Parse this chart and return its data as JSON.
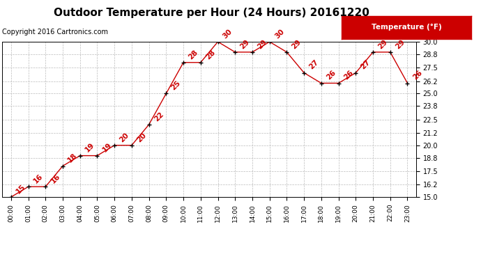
{
  "title": "Outdoor Temperature per Hour (24 Hours) 20161220",
  "copyright": "Copyright 2016 Cartronics.com",
  "legend_label": "Temperature (°F)",
  "hours": [
    "00:00",
    "01:00",
    "02:00",
    "03:00",
    "04:00",
    "05:00",
    "06:00",
    "07:00",
    "08:00",
    "09:00",
    "10:00",
    "11:00",
    "12:00",
    "13:00",
    "14:00",
    "15:00",
    "16:00",
    "17:00",
    "18:00",
    "19:00",
    "20:00",
    "21:00",
    "22:00",
    "23:00"
  ],
  "temps": [
    15,
    16,
    16,
    18,
    19,
    19,
    20,
    20,
    22,
    25,
    28,
    28,
    30,
    29,
    29,
    30,
    29,
    27,
    26,
    26,
    27,
    29,
    29,
    26
  ],
  "line_color": "#cc0000",
  "marker_color": "#000000",
  "label_color": "#cc0000",
  "background_color": "#ffffff",
  "grid_color": "#bbbbbb",
  "ylim": [
    15.0,
    30.0
  ],
  "yticks": [
    15.0,
    16.2,
    17.5,
    18.8,
    20.0,
    21.2,
    22.5,
    23.8,
    25.0,
    26.2,
    27.5,
    28.8,
    30.0
  ],
  "title_fontsize": 11,
  "label_fontsize": 7.5,
  "copyright_fontsize": 7,
  "legend_bg": "#cc0000",
  "legend_fg": "#ffffff"
}
